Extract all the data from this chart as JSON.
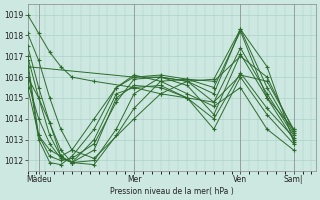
{
  "title": "Pression niveau de la mer( hPa )",
  "bg_color": "#cce8e0",
  "grid_color": "#a8ccc4",
  "line_color": "#2d6b2d",
  "ylim": [
    1011.5,
    1019.5
  ],
  "xlim": [
    0,
    130
  ],
  "xtick_labels": [
    "Màdeu",
    "Mer",
    "Ven",
    "Sam|"
  ],
  "xtick_positions": [
    5,
    48,
    96,
    120
  ],
  "ytick_values": [
    1012,
    1013,
    1014,
    1015,
    1016,
    1017,
    1018,
    1019
  ],
  "series": [
    {
      "x": [
        0,
        5,
        10,
        15,
        20,
        30,
        48,
        60,
        72,
        84,
        96,
        108,
        120
      ],
      "y": [
        1019.0,
        1018.1,
        1017.2,
        1016.5,
        1016.0,
        1015.8,
        1015.5,
        1015.2,
        1015.0,
        1014.8,
        1016.1,
        1015.8,
        1013.5
      ]
    },
    {
      "x": [
        0,
        5,
        10,
        15,
        20,
        30,
        48,
        60,
        72,
        84,
        96,
        108,
        120
      ],
      "y": [
        1018.1,
        1016.8,
        1015.0,
        1013.5,
        1012.5,
        1012.1,
        1014.0,
        1015.2,
        1015.8,
        1015.9,
        1018.3,
        1016.5,
        1012.9
      ]
    },
    {
      "x": [
        0,
        5,
        10,
        15,
        20,
        30,
        40,
        48,
        60,
        72,
        84,
        96,
        108,
        120
      ],
      "y": [
        1017.5,
        1015.5,
        1013.8,
        1012.5,
        1011.9,
        1011.8,
        1013.2,
        1014.5,
        1015.8,
        1015.9,
        1015.5,
        1018.2,
        1015.0,
        1013.5
      ]
    },
    {
      "x": [
        0,
        5,
        10,
        15,
        20,
        30,
        40,
        48,
        60,
        72,
        84,
        96,
        108,
        120
      ],
      "y": [
        1017.0,
        1015.0,
        1013.2,
        1012.2,
        1011.9,
        1012.0,
        1013.5,
        1015.2,
        1016.0,
        1015.8,
        1015.2,
        1018.3,
        1015.5,
        1013.3
      ]
    },
    {
      "x": [
        0,
        5,
        10,
        15,
        20,
        30,
        40,
        48,
        60,
        72,
        84,
        96,
        108,
        120
      ],
      "y": [
        1016.8,
        1013.2,
        1012.2,
        1012.0,
        1012.1,
        1012.8,
        1014.8,
        1015.9,
        1016.0,
        1015.8,
        1014.8,
        1017.4,
        1015.2,
        1013.2
      ]
    },
    {
      "x": [
        0,
        5,
        10,
        15,
        20,
        30,
        40,
        48,
        60,
        72,
        84,
        96,
        108,
        120
      ],
      "y": [
        1016.5,
        1013.0,
        1011.9,
        1011.8,
        1012.2,
        1013.5,
        1015.5,
        1016.0,
        1016.0,
        1015.6,
        1014.2,
        1017.1,
        1015.0,
        1013.0
      ]
    },
    {
      "x": [
        0,
        5,
        10,
        15,
        20,
        30,
        40,
        48,
        60,
        72,
        84,
        96,
        108,
        120
      ],
      "y": [
        1016.0,
        1015.0,
        1013.8,
        1012.2,
        1011.9,
        1012.5,
        1015.0,
        1015.6,
        1015.5,
        1015.0,
        1014.0,
        1016.2,
        1014.5,
        1013.1
      ]
    },
    {
      "x": [
        0,
        5,
        10,
        15,
        20,
        30,
        40,
        48,
        60,
        72,
        84,
        96,
        108,
        120
      ],
      "y": [
        1015.8,
        1014.0,
        1012.8,
        1012.1,
        1011.9,
        1013.0,
        1015.2,
        1015.5,
        1015.6,
        1015.0,
        1013.5,
        1016.0,
        1014.2,
        1012.8
      ]
    },
    {
      "x": [
        0,
        5,
        10,
        15,
        20,
        30,
        40,
        48,
        60,
        72,
        84,
        96,
        108,
        120
      ],
      "y": [
        1015.5,
        1013.2,
        1012.5,
        1012.2,
        1012.5,
        1014.0,
        1015.5,
        1016.1,
        1015.8,
        1015.2,
        1014.6,
        1015.5,
        1013.5,
        1012.5
      ]
    },
    {
      "x": [
        0,
        48,
        60,
        72,
        84,
        96,
        108,
        120
      ],
      "y": [
        1016.5,
        1016.0,
        1016.1,
        1015.9,
        1015.8,
        1017.0,
        1016.0,
        1013.4
      ]
    }
  ]
}
